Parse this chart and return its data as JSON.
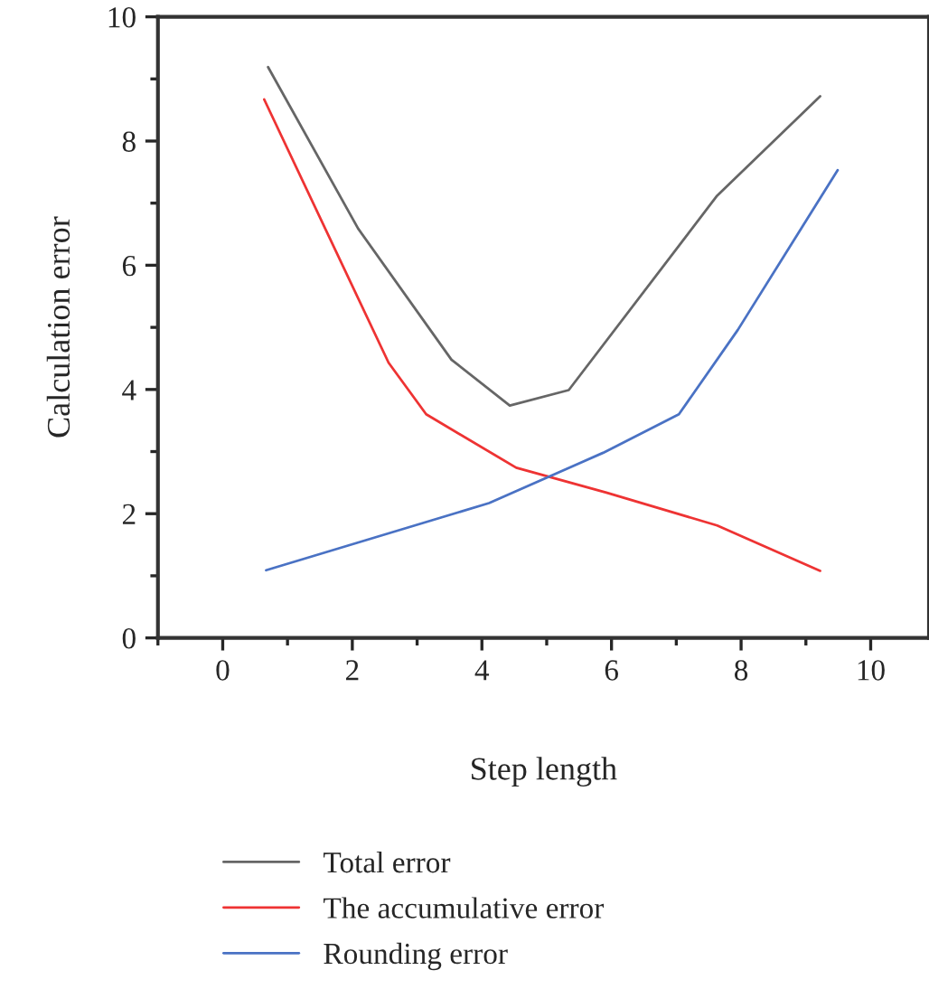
{
  "chart_data": {
    "type": "line",
    "xlabel": "Step length",
    "ylabel": "Calculation error",
    "xlim": [
      -1,
      10.9
    ],
    "ylim": [
      0,
      10
    ],
    "xticks": [
      0,
      2,
      4,
      6,
      8,
      10
    ],
    "yticks": [
      0,
      2,
      4,
      6,
      8,
      10
    ],
    "grid": false,
    "legend": "bottom",
    "marker": "none",
    "line_style": "solid",
    "series": [
      {
        "name": "Total error",
        "color": "#666666",
        "x": [
          0.7,
          2.09,
          3.53,
          4.43,
          5.34,
          7.63,
          9.22
        ],
        "values": [
          9.19,
          6.59,
          4.48,
          3.74,
          3.99,
          7.12,
          8.72
        ]
      },
      {
        "name": "The accumulative error",
        "color": "#ee3333",
        "x": [
          0.64,
          2.56,
          3.14,
          4.53,
          5.92,
          7.63,
          9.22
        ],
        "values": [
          8.67,
          4.43,
          3.6,
          2.74,
          2.34,
          1.81,
          1.08
        ]
      },
      {
        "name": "Rounding error",
        "color": "#4a72c4",
        "x": [
          0.67,
          4.11,
          5.87,
          7.04,
          7.95,
          9.49
        ],
        "values": [
          1.09,
          2.17,
          2.98,
          3.6,
          4.96,
          7.53
        ]
      }
    ]
  }
}
